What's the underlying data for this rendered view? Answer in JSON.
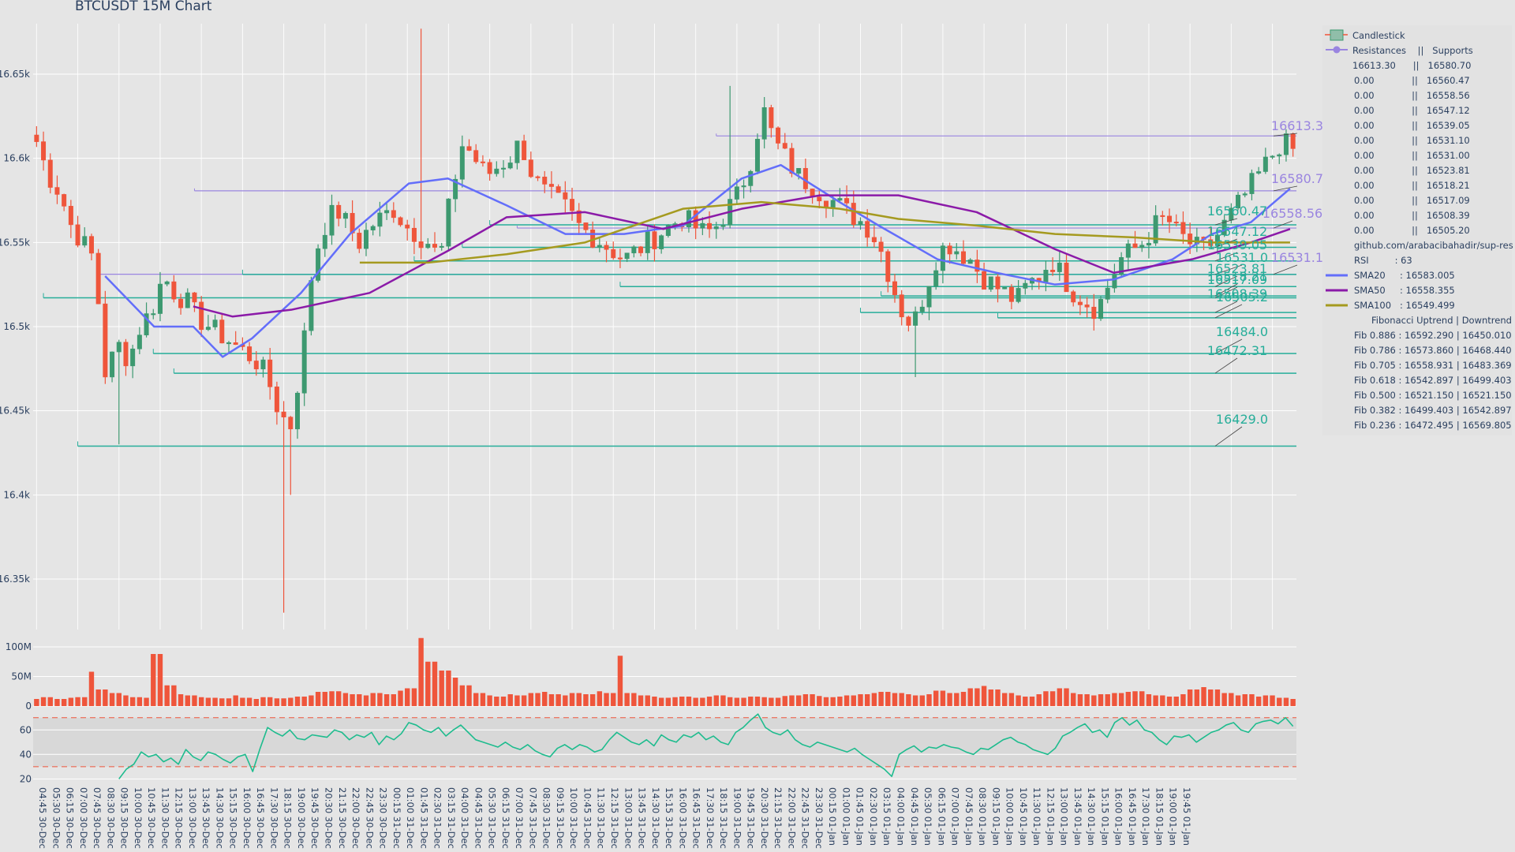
{
  "title": "BTCUSDT 15M Chart",
  "colors": {
    "background": "#e5e5e5",
    "increasing": "#3d9970",
    "decreasing": "#ef553b",
    "volume": "#ef553b",
    "rsi": "#1ebc8e",
    "resistance": "#9a85e0",
    "support": "#27ae9a",
    "sma20": "#636efa",
    "sma50": "#8b1aa8",
    "sma100": "#a59a1f"
  },
  "price_axis": {
    "ticks": [
      "16.65k",
      "16.6k",
      "16.55k",
      "16.5k",
      "16.45k",
      "16.4k",
      "16.35k"
    ]
  },
  "volume_axis": {
    "ticks": [
      "100M",
      "50M",
      "0"
    ]
  },
  "rsi_axis": {
    "ticks": [
      "60",
      "40",
      "20"
    ]
  },
  "x_axis": {
    "ticks": [
      "04:45 30-Dec",
      "05:30 30-Dec",
      "06:15 30-Dec",
      "07:00 30-Dec",
      "07:45 30-Dec",
      "08:30 30-Dec",
      "09:15 30-Dec",
      "10:00 30-Dec",
      "10:45 30-Dec",
      "11:30 30-Dec",
      "12:15 30-Dec",
      "13:00 30-Dec",
      "13:45 30-Dec",
      "14:30 30-Dec",
      "15:15 30-Dec",
      "16:00 30-Dec",
      "16:45 30-Dec",
      "17:30 30-Dec",
      "18:15 30-Dec",
      "19:00 30-Dec",
      "19:45 30-Dec",
      "20:30 30-Dec",
      "21:15 30-Dec",
      "22:00 30-Dec",
      "22:45 30-Dec",
      "23:30 30-Dec",
      "00:15 31-Dec",
      "01:00 31-Dec",
      "01:45 31-Dec",
      "02:30 31-Dec",
      "03:15 31-Dec",
      "04:00 31-Dec",
      "04:45 31-Dec",
      "05:30 31-Dec",
      "06:15 31-Dec",
      "07:00 31-Dec",
      "07:45 31-Dec",
      "08:30 31-Dec",
      "09:15 31-Dec",
      "10:00 31-Dec",
      "10:45 31-Dec",
      "11:30 31-Dec",
      "12:15 31-Dec",
      "13:00 31-Dec",
      "13:45 31-Dec",
      "14:30 31-Dec",
      "15:15 31-Dec",
      "16:00 31-Dec",
      "16:45 31-Dec",
      "17:30 31-Dec",
      "18:15 31-Dec",
      "19:00 31-Dec",
      "19:45 31-Dec",
      "20:30 31-Dec",
      "21:15 31-Dec",
      "22:00 31-Dec",
      "22:45 31-Dec",
      "23:30 31-Dec",
      "00:15 01-Jan",
      "01:00 01-Jan",
      "01:45 01-Jan",
      "02:30 01-Jan",
      "03:15 01-Jan",
      "04:00 01-Jan",
      "04:45 01-Jan",
      "05:30 01-Jan",
      "06:15 01-Jan",
      "07:00 01-Jan",
      "07:45 01-Jan",
      "08:30 01-Jan",
      "09:15 01-Jan",
      "10:00 01-Jan",
      "10:45 01-Jan",
      "11:30 01-Jan",
      "12:15 01-Jan",
      "13:00 01-Jan",
      "13:45 01-Jan",
      "14:30 01-Jan",
      "15:15 01-Jan",
      "16:00 01-Jan",
      "16:45 01-Jan",
      "17:30 01-Jan",
      "18:15 01-Jan",
      "19:00 01-Jan",
      "19:45 01-Jan"
    ]
  },
  "legend": {
    "candlestick": "Candlestick",
    "sr_header": "Resistances    ||   Supports",
    "sr_rows": [
      "16613.30      ||   16580.70",
      "0.00             ||   16560.47",
      "0.00             ||   16558.56",
      "0.00             ||   16547.12",
      "0.00             ||   16539.05",
      "0.00             ||   16531.10",
      "0.00             ||   16531.00",
      "0.00             ||   16523.81",
      "0.00             ||   16518.21",
      "0.00             ||   16517.09",
      "0.00             ||   16508.39",
      "0.00             ||   16505.20"
    ],
    "github": "github.com/arabacibahadir/sup-res",
    "rsi": "RSI         : 63",
    "sma20": "SMA20     : 16583.005",
    "sma50": "SMA50     : 16558.355",
    "sma100": "SMA100   : 16549.499",
    "fib_header": "Fibonacci Uptrend | Downtrend",
    "fib_rows": [
      "Fib 0.886 : 16592.290 | 16450.010",
      "Fib 0.786 : 16573.860 | 16468.440",
      "Fib 0.705 : 16558.931 | 16483.369",
      "Fib 0.618 : 16542.897 | 16499.403",
      "Fib 0.500 : 16521.150 | 16521.150",
      "Fib 0.382 : 16499.403 | 16542.897",
      "Fib 0.236 : 16472.495 | 16569.805"
    ]
  },
  "chart_data": [
    {
      "type": "candlestick",
      "title": "BTCUSDT 15M Chart",
      "xlabel": "",
      "ylabel": "",
      "ylim": [
        16320,
        16680
      ],
      "x_range": [
        "04:45 30-Dec",
        "19:45 01-Jan"
      ],
      "grid": true,
      "legend_position": "right",
      "approx_close_path": [
        16610,
        16590,
        16580,
        16560,
        16550,
        16540,
        16470,
        16490,
        16480,
        16500,
        16510,
        16530,
        16520,
        16515,
        16505,
        16500,
        16495,
        16490,
        16485,
        16480,
        16470,
        16450,
        16440,
        16480,
        16540,
        16560,
        16570,
        16560,
        16550,
        16560,
        16565,
        16570,
        16560,
        16555,
        16550,
        16540,
        16580,
        16610,
        16600,
        16590,
        16595,
        16600,
        16610,
        16590,
        16580,
        16575,
        16570,
        16560,
        16555,
        16550,
        16545,
        16540,
        16545,
        16550,
        16555,
        16560,
        16565,
        16560,
        16555,
        16560,
        16570,
        16580,
        16600,
        16630,
        16610,
        16600,
        16590,
        16585,
        16580,
        16575,
        16570,
        16565,
        16560,
        16550,
        16530,
        16510,
        16500,
        16520,
        16540,
        16550,
        16545,
        16540,
        16530,
        16525,
        16520,
        16515,
        16525,
        16530,
        16540,
        16530,
        16520,
        16515,
        16510,
        16525,
        16540,
        16545,
        16550,
        16560,
        16565,
        16555,
        16550,
        16545,
        16550,
        16560,
        16570,
        16580,
        16590,
        16600,
        16610,
        16605
      ],
      "sma": [
        {
          "name": "SMA20",
          "value": 16583.005,
          "approx_path": [
            [
              7,
              16530
            ],
            [
              12,
              16500
            ],
            [
              16,
              16500
            ],
            [
              19,
              16482
            ],
            [
              22,
              16493
            ],
            [
              27,
              16520
            ],
            [
              32,
              16555
            ],
            [
              38,
              16585
            ],
            [
              42,
              16588
            ],
            [
              48,
              16572
            ],
            [
              54,
              16555
            ],
            [
              60,
              16555
            ],
            [
              66,
              16560
            ],
            [
              72,
              16588
            ],
            [
              76,
              16596
            ],
            [
              82,
              16574
            ],
            [
              86,
              16560
            ],
            [
              92,
              16540
            ],
            [
              98,
              16532
            ],
            [
              104,
              16525
            ],
            [
              110,
              16528
            ],
            [
              116,
              16540
            ],
            [
              120,
              16555
            ],
            [
              124,
              16562
            ],
            [
              128,
              16582
            ]
          ]
        },
        {
          "name": "SMA50",
          "value": 16558.355,
          "approx_path": [
            [
              16,
              16512
            ],
            [
              20,
              16506
            ],
            [
              26,
              16510
            ],
            [
              34,
              16520
            ],
            [
              42,
              16545
            ],
            [
              48,
              16565
            ],
            [
              56,
              16568
            ],
            [
              64,
              16558
            ],
            [
              72,
              16570
            ],
            [
              80,
              16578
            ],
            [
              88,
              16578
            ],
            [
              96,
              16568
            ],
            [
              104,
              16546
            ],
            [
              110,
              16532
            ],
            [
              118,
              16540
            ],
            [
              124,
              16550
            ],
            [
              128,
              16558
            ]
          ]
        },
        {
          "name": "SMA100",
          "value": 16549.499,
          "approx_path": [
            [
              33,
              16538
            ],
            [
              40,
              16538
            ],
            [
              48,
              16543
            ],
            [
              56,
              16550
            ],
            [
              66,
              16570
            ],
            [
              74,
              16574
            ],
            [
              82,
              16570
            ],
            [
              88,
              16564
            ],
            [
              96,
              16560
            ],
            [
              104,
              16555
            ],
            [
              112,
              16553
            ],
            [
              120,
              16550
            ],
            [
              128,
              16550
            ]
          ]
        }
      ],
      "resistances": [
        16613.3,
        16580.7,
        16558.56,
        16531.1
      ],
      "supports": [
        16560.47,
        16547.12,
        16539.05,
        16531.0,
        16523.81,
        16518.21,
        16517.09,
        16508.39,
        16505.2,
        16484.0,
        16472.31,
        16429.0
      ],
      "level_labels": [
        "16613.3",
        "16580.7",
        "16558.56",
        "16531.1",
        "16560.47",
        "16547.12",
        "16539.05",
        "16531.0",
        "16523.81",
        "16518.21",
        "16517.09",
        "16508.39",
        "16505.2",
        "16484.0",
        "16472.31",
        "16429.0"
      ]
    },
    {
      "type": "bar",
      "name": "Volume",
      "ylim": [
        0,
        120
      ],
      "unit": "M",
      "approx_values": [
        12,
        15,
        12,
        14,
        15,
        58,
        28,
        22,
        18,
        15,
        14,
        88,
        35,
        20,
        18,
        15,
        14,
        13,
        18,
        14,
        12,
        15,
        13,
        14,
        16,
        18,
        24,
        25,
        22,
        20,
        18,
        22,
        20,
        26,
        30,
        115,
        75,
        60,
        48,
        35,
        22,
        18,
        16,
        20,
        18,
        22,
        24,
        20,
        18,
        22,
        20,
        25,
        22,
        85,
        22,
        18,
        16,
        14,
        15,
        16,
        14,
        16,
        18,
        15,
        14,
        16,
        15,
        14,
        17,
        18,
        20,
        17,
        15,
        16,
        18,
        20,
        22,
        24,
        22,
        20,
        18,
        20,
        26,
        22,
        24,
        30,
        34,
        28,
        22,
        18,
        16,
        20,
        25,
        30,
        22,
        20,
        18,
        20,
        22,
        24,
        25,
        20,
        18,
        16,
        20,
        28,
        32,
        28,
        22,
        18,
        20,
        16,
        18,
        14,
        12
      ]
    },
    {
      "type": "line",
      "name": "RSI",
      "value": 63,
      "ylim": [
        17,
        75
      ],
      "reference_lines": [
        70,
        30
      ],
      "approx_values": [
        20,
        28,
        32,
        42,
        38,
        40,
        34,
        37,
        32,
        44,
        38,
        35,
        42,
        40,
        36,
        33,
        38,
        40,
        26,
        45,
        62,
        58,
        55,
        60,
        53,
        52,
        56,
        55,
        54,
        60,
        58,
        52,
        56,
        54,
        58,
        48,
        55,
        52,
        57,
        66,
        64,
        60,
        58,
        62,
        55,
        60,
        64,
        58,
        52,
        50,
        48,
        46,
        50,
        46,
        44,
        48,
        43,
        40,
        38,
        45,
        48,
        44,
        48,
        46,
        42,
        44,
        52,
        58,
        54,
        50,
        48,
        52,
        47,
        56,
        52,
        50,
        56,
        54,
        58,
        52,
        55,
        50,
        48,
        58,
        62,
        68,
        73,
        62,
        58,
        56,
        60,
        52,
        48,
        46,
        50,
        48,
        46,
        44,
        42,
        45,
        40,
        36,
        32,
        28,
        22,
        40,
        44,
        47,
        42,
        46,
        45,
        48,
        46,
        45,
        42,
        40,
        45,
        44,
        48,
        52,
        54,
        50,
        48,
        44,
        42,
        40,
        45,
        55,
        58,
        62,
        65,
        58,
        60,
        54,
        66,
        70,
        64,
        68,
        60,
        58,
        52,
        48,
        55,
        54,
        56,
        50,
        54,
        58,
        60,
        64,
        66,
        60,
        58,
        65,
        67,
        68,
        65,
        70,
        63
      ]
    }
  ]
}
